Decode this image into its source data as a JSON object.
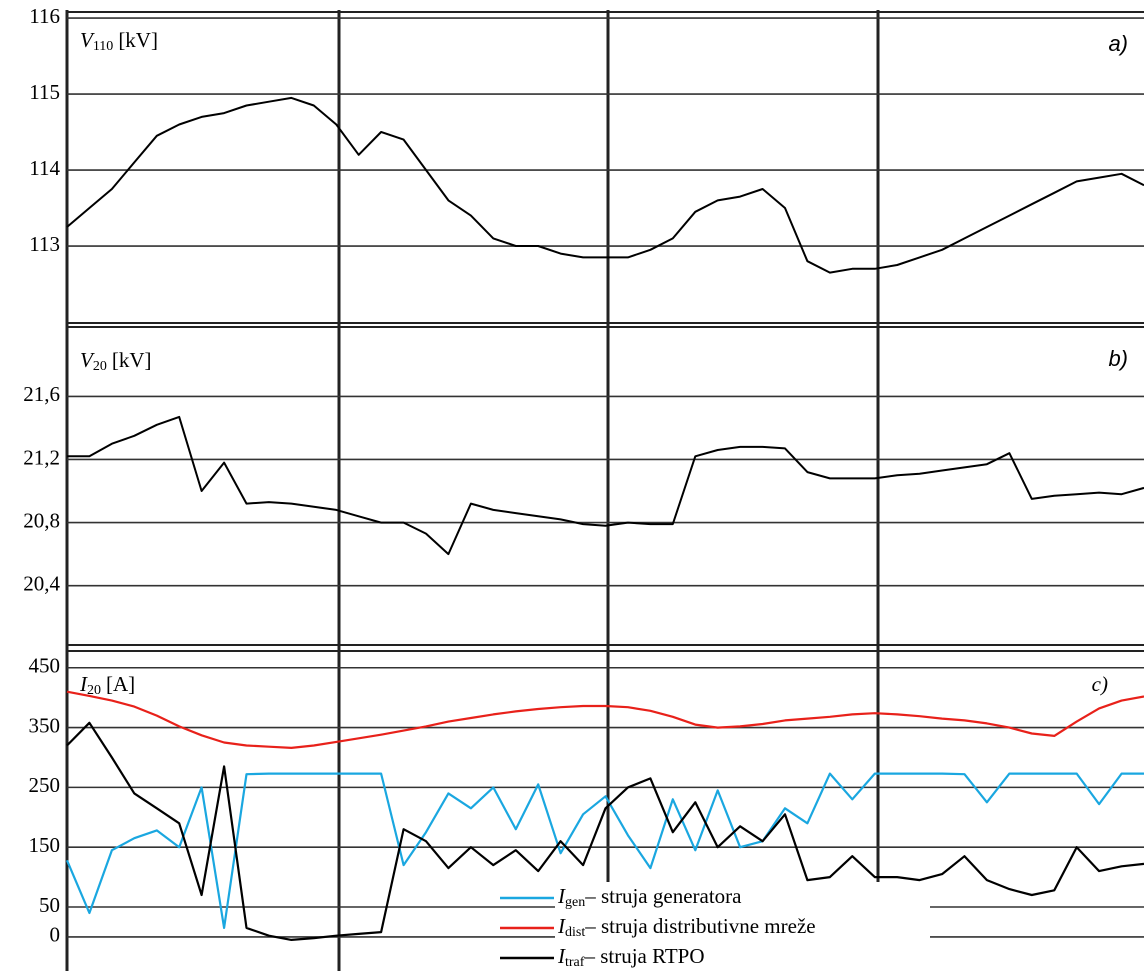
{
  "chart_data": [
    {
      "type": "line",
      "ylabel": {
        "symbol": "V",
        "sub": "110",
        "unit": "[kV]"
      },
      "annotation": "a)",
      "categories": [
        null,
        null,
        null,
        null,
        null,
        null,
        null,
        null,
        null,
        null,
        null,
        null,
        null,
        null,
        null,
        null,
        null,
        null,
        null,
        null,
        null,
        null,
        null,
        null,
        null,
        null,
        null,
        null,
        null,
        null,
        null,
        null,
        null,
        null,
        null,
        null,
        null,
        null,
        null,
        null,
        null,
        null,
        null,
        null,
        null,
        null,
        null,
        null,
        null
      ],
      "values": [
        113.25,
        113.5,
        113.75,
        114.1,
        114.45,
        114.6,
        114.7,
        114.75,
        114.85,
        114.9,
        114.95,
        114.85,
        114.6,
        114.2,
        114.5,
        114.4,
        114.0,
        113.6,
        113.4,
        113.1,
        113.0,
        113.0,
        112.9,
        112.85,
        112.85,
        112.85,
        112.95,
        113.1,
        113.45,
        113.6,
        113.65,
        113.75,
        113.5,
        112.8,
        112.65,
        112.7,
        112.7,
        112.75,
        112.85,
        112.95,
        113.1,
        113.25,
        113.4,
        113.55,
        113.7,
        113.85,
        113.9,
        113.95,
        113.8
      ],
      "color": "#000000",
      "ylim": [
        112.0,
        116.08
      ],
      "yticks": [
        113,
        114,
        115,
        116
      ],
      "grid": true
    },
    {
      "type": "line",
      "ylabel": {
        "symbol": "V",
        "sub": "20",
        "unit": "[kV]"
      },
      "annotation": "b)",
      "categories": [
        null,
        null,
        null,
        null,
        null,
        null,
        null,
        null,
        null,
        null,
        null,
        null,
        null,
        null,
        null,
        null,
        null,
        null,
        null,
        null,
        null,
        null,
        null,
        null,
        null,
        null,
        null,
        null,
        null,
        null,
        null,
        null,
        null,
        null,
        null,
        null,
        null,
        null,
        null,
        null,
        null,
        null,
        null,
        null,
        null,
        null,
        null,
        null,
        null
      ],
      "values": [
        21.22,
        21.22,
        21.3,
        21.35,
        21.42,
        21.47,
        21.0,
        21.18,
        20.92,
        20.93,
        20.92,
        20.9,
        20.88,
        20.84,
        20.8,
        20.8,
        20.73,
        20.6,
        20.92,
        20.88,
        20.86,
        20.84,
        20.82,
        20.79,
        20.78,
        20.8,
        20.79,
        20.79,
        21.22,
        21.26,
        21.28,
        21.28,
        21.27,
        21.12,
        21.08,
        21.08,
        21.08,
        21.1,
        21.11,
        21.13,
        21.15,
        21.17,
        21.24,
        20.95,
        20.97,
        20.98,
        20.99,
        20.98,
        21.02
      ],
      "color": "#000000",
      "ylim": [
        20.03,
        22.04
      ],
      "yticks": [
        {
          "value": 20.4,
          "label": "20,4"
        },
        {
          "value": 20.8,
          "label": "20,8"
        },
        {
          "value": 21.2,
          "label": "21,2"
        },
        {
          "value": 21.6,
          "label": "21,6"
        }
      ],
      "grid": true
    },
    {
      "type": "line",
      "ylabel": {
        "symbol": "I",
        "sub": "20",
        "unit": "[A]"
      },
      "annotation": "c)",
      "categories": [
        null,
        null,
        null,
        null,
        null,
        null,
        null,
        null,
        null,
        null,
        null,
        null,
        null,
        null,
        null,
        null,
        null,
        null,
        null,
        null,
        null,
        null,
        null,
        null,
        null,
        null,
        null,
        null,
        null,
        null,
        null,
        null,
        null,
        null,
        null,
        null,
        null,
        null,
        null,
        null,
        null,
        null,
        null,
        null,
        null,
        null,
        null,
        null,
        null
      ],
      "series": [
        {
          "symbol": "I",
          "sub": "gen",
          "name": "– struja generatora",
          "color": "#1aa7e0",
          "values": [
            128,
            40,
            145,
            165,
            178,
            150,
            250,
            15,
            272,
            273,
            273,
            273,
            273,
            273,
            273,
            120,
            175,
            240,
            215,
            250,
            180,
            255,
            140,
            205,
            235,
            170,
            115,
            230,
            145,
            245,
            150,
            160,
            215,
            190,
            273,
            230,
            273,
            273,
            273,
            273,
            272,
            225,
            273,
            273,
            273,
            273,
            222,
            273,
            273
          ]
        },
        {
          "symbol": "I",
          "sub": "dist",
          "name": "– struja distributivne mreže",
          "color": "#e8211a",
          "values": [
            410,
            403,
            395,
            385,
            370,
            352,
            337,
            325,
            320,
            318,
            316,
            320,
            326,
            332,
            338,
            345,
            352,
            360,
            366,
            372,
            377,
            381,
            384,
            386,
            386,
            384,
            378,
            368,
            355,
            350,
            352,
            356,
            362,
            365,
            368,
            372,
            374,
            372,
            369,
            365,
            362,
            357,
            350,
            340,
            336,
            360,
            382,
            395,
            402
          ]
        },
        {
          "symbol": "I",
          "sub": "traf",
          "name": "– struja RTPO",
          "color": "#000000",
          "values": [
            320,
            358,
            300,
            240,
            215,
            190,
            70,
            285,
            15,
            2,
            -5,
            -2,
            2,
            5,
            8,
            180,
            160,
            115,
            150,
            120,
            145,
            110,
            160,
            120,
            215,
            250,
            265,
            175,
            225,
            150,
            185,
            160,
            205,
            95,
            100,
            135,
            100,
            100,
            95,
            105,
            135,
            95,
            80,
            70,
            78,
            150,
            110,
            118,
            122
          ]
        }
      ],
      "ylim": [
        -57,
        478
      ],
      "yticks": [
        0,
        50,
        150,
        250,
        350,
        450
      ],
      "grid": true
    }
  ]
}
